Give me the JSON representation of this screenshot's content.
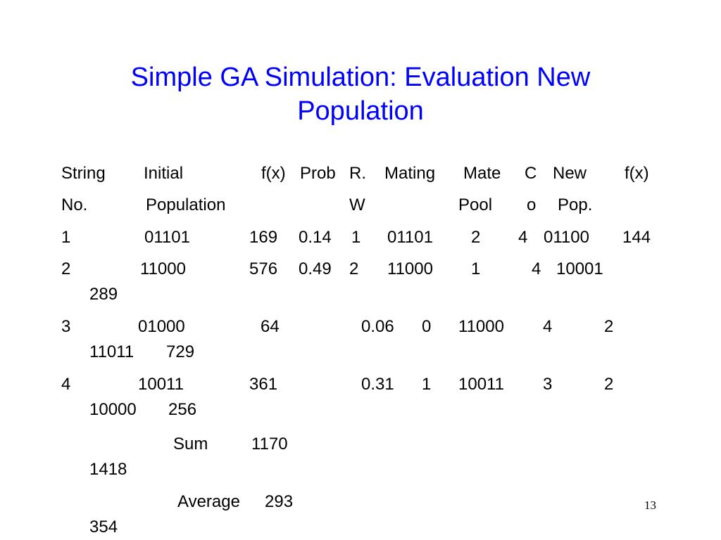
{
  "title": {
    "line1": "Simple GA Simulation: Evaluation New",
    "line2": "Population"
  },
  "header": {
    "row1": {
      "string": "String",
      "initial": "Initial",
      "fx": "f(x)",
      "prob": "Prob",
      "r": "R.",
      "mating": "Mating",
      "mate": "Mate",
      "c": "C",
      "new": "New",
      "fx2": "f(x)"
    },
    "row2": {
      "no": "No.",
      "population": "Population",
      "w": "W",
      "pool": "Pool",
      "o": "o",
      "pop": "Pop."
    }
  },
  "rows": [
    {
      "no": "1",
      "initial": "01101",
      "fx": "169",
      "prob": "0.14",
      "rw": "1",
      "pool": "01101",
      "mate": "2",
      "c": "4",
      "new": "01100",
      "fx2": "144"
    },
    {
      "no": "2",
      "initial": "11000",
      "fx": "576",
      "prob": "0.49",
      "rw": "2",
      "pool": "11000",
      "mate": "1",
      "c": "4",
      "new": "10001",
      "fx2": "289"
    },
    {
      "no": "3",
      "initial": "01000",
      "fx": "64",
      "prob": "0.06",
      "rw": "0",
      "pool": "11000",
      "mate": "4",
      "c": "2",
      "new": "11011",
      "fx2": "729"
    },
    {
      "no": "4",
      "initial": "10011",
      "fx": "361",
      "prob": "0.31",
      "rw": "1",
      "pool": "10011",
      "mate": "3",
      "c": "2",
      "new": "10000",
      "fx2": "256"
    }
  ],
  "sum": {
    "label": "Sum",
    "initial": "1170",
    "new": "1418"
  },
  "average": {
    "label": "Average",
    "initial": "293",
    "new": "354"
  },
  "page_number": "13"
}
